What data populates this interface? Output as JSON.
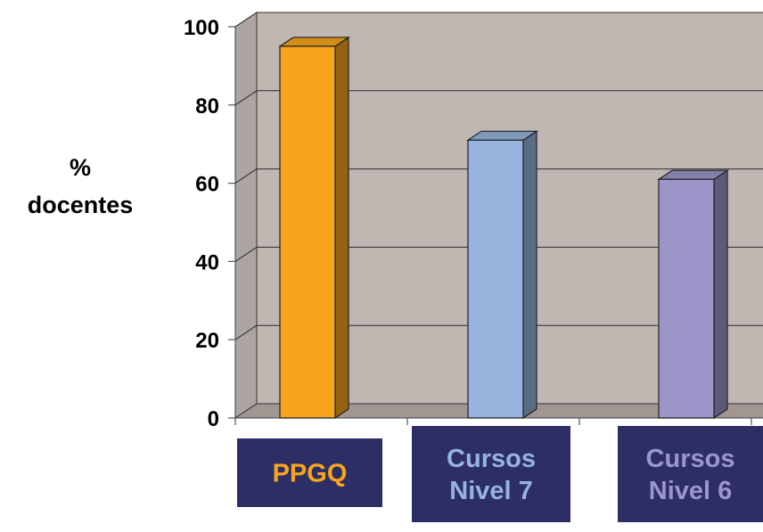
{
  "chart_data": {
    "type": "bar",
    "title": "",
    "xlabel": "",
    "ylabel": [
      "%",
      "docentes"
    ],
    "ylim": [
      0,
      100
    ],
    "yticks": [
      "0",
      "20",
      "40",
      "60",
      "80",
      "100"
    ],
    "grid": true,
    "categories": [
      [
        "PPGQ"
      ],
      [
        "Cursos",
        "Nivel 7"
      ],
      [
        "Cursos",
        "Nivel 6"
      ]
    ],
    "values": [
      95,
      71,
      61
    ],
    "bar_colors": [
      "#f7a51c",
      "#96b4dd",
      "#9b95c9"
    ],
    "label_text_colors": [
      "#f7a51c",
      "#96b4dd",
      "#9b95c9"
    ],
    "label_box_color": "#2e2e66",
    "plot_wall_color": "#c0b7b3",
    "plot_floor_color": "#a19692"
  }
}
